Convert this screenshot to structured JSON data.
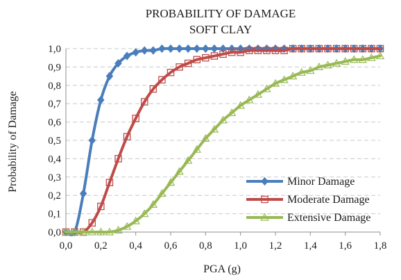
{
  "chart_data": {
    "type": "line",
    "title": "PROBABILITY OF DAMAGE",
    "subtitle": "SOFT CLAY",
    "xlabel": "PGA (g)",
    "ylabel": "Probability of Damage",
    "xlim": [
      0,
      1.8
    ],
    "ylim": [
      0,
      1.0
    ],
    "x_ticks": [
      "0,0",
      "0,2",
      "0,4",
      "0,6",
      "0,8",
      "1,0",
      "1,2",
      "1,4",
      "1,6",
      "1,8"
    ],
    "y_ticks": [
      "0,0",
      "0,1",
      "0,2",
      "0,3",
      "0,4",
      "0,5",
      "0,6",
      "0,7",
      "0,8",
      "0,9",
      "1,0"
    ],
    "grid": "horizontal-dashed",
    "legend_position": "bottom-right",
    "x": [
      0.0,
      0.05,
      0.1,
      0.15,
      0.2,
      0.25,
      0.3,
      0.35,
      0.4,
      0.45,
      0.5,
      0.55,
      0.6,
      0.65,
      0.7,
      0.75,
      0.8,
      0.85,
      0.9,
      0.95,
      1.0,
      1.05,
      1.1,
      1.15,
      1.2,
      1.25,
      1.3,
      1.35,
      1.4,
      1.45,
      1.5,
      1.55,
      1.6,
      1.65,
      1.7,
      1.75,
      1.8
    ],
    "series": [
      {
        "name": "Minor Damage",
        "color": "#4a7ebb",
        "marker": "diamond",
        "values": [
          0.0,
          0.0,
          0.21,
          0.5,
          0.72,
          0.85,
          0.92,
          0.96,
          0.98,
          0.99,
          0.99,
          1.0,
          1.0,
          1.0,
          1.0,
          1.0,
          1.0,
          1.0,
          1.0,
          1.0,
          1.0,
          1.0,
          1.0,
          1.0,
          1.0,
          1.0,
          1.0,
          1.0,
          1.0,
          1.0,
          1.0,
          1.0,
          1.0,
          1.0,
          1.0,
          1.0,
          1.0
        ]
      },
      {
        "name": "Moderate Damage",
        "color": "#be4b48",
        "marker": "square",
        "values": [
          0.0,
          0.0,
          0.0,
          0.05,
          0.14,
          0.27,
          0.4,
          0.52,
          0.62,
          0.71,
          0.78,
          0.83,
          0.87,
          0.9,
          0.92,
          0.94,
          0.95,
          0.96,
          0.97,
          0.98,
          0.98,
          0.99,
          0.99,
          0.99,
          0.99,
          0.99,
          1.0,
          1.0,
          1.0,
          1.0,
          1.0,
          1.0,
          1.0,
          1.0,
          1.0,
          1.0,
          1.0
        ]
      },
      {
        "name": "Extensive Damage",
        "color": "#98b954",
        "marker": "triangle",
        "values": [
          0.0,
          0.0,
          0.0,
          0.0,
          0.0,
          0.0,
          0.01,
          0.03,
          0.06,
          0.1,
          0.15,
          0.21,
          0.27,
          0.33,
          0.39,
          0.45,
          0.51,
          0.56,
          0.61,
          0.65,
          0.69,
          0.72,
          0.75,
          0.78,
          0.81,
          0.83,
          0.85,
          0.87,
          0.88,
          0.9,
          0.91,
          0.92,
          0.93,
          0.94,
          0.94,
          0.95,
          0.96
        ]
      }
    ]
  }
}
